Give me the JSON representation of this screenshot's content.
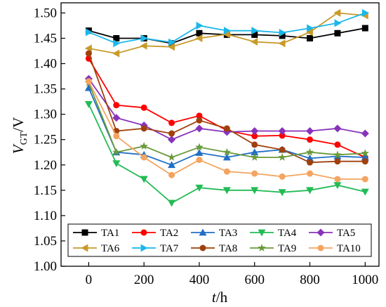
{
  "chart_data": {
    "type": "line",
    "xlabel": {
      "var": "t",
      "unit": "/h"
    },
    "ylabel": {
      "var": "V",
      "sub": "GT",
      "unit": "/V"
    },
    "xlim": [
      -100,
      1050
    ],
    "ylim": [
      1.0,
      1.52
    ],
    "xticks": [
      0,
      200,
      400,
      600,
      800,
      1000
    ],
    "yticks": [
      1.0,
      1.05,
      1.1,
      1.15,
      1.2,
      1.25,
      1.3,
      1.35,
      1.4,
      1.45,
      1.5
    ],
    "x": [
      0,
      100,
      200,
      300,
      400,
      500,
      600,
      700,
      800,
      900,
      1000
    ],
    "grid": false,
    "legend_position": "bottom",
    "series": [
      {
        "name": "TA1",
        "color": "#000000",
        "marker": "square",
        "values": [
          1.465,
          1.45,
          1.45,
          1.44,
          1.46,
          1.457,
          1.457,
          1.455,
          1.45,
          1.46,
          1.47
        ]
      },
      {
        "name": "TA2",
        "color": "#ff0000",
        "marker": "circle",
        "values": [
          1.41,
          1.318,
          1.313,
          1.283,
          1.297,
          1.268,
          1.257,
          1.258,
          1.25,
          1.24,
          1.215
        ]
      },
      {
        "name": "TA3",
        "color": "#1f6fc6",
        "marker": "triangle-up",
        "values": [
          1.352,
          1.225,
          1.22,
          1.2,
          1.224,
          1.215,
          1.225,
          1.23,
          1.213,
          1.217,
          1.215
        ]
      },
      {
        "name": "TA4",
        "color": "#22bb55",
        "marker": "triangle-down",
        "values": [
          1.32,
          1.203,
          1.172,
          1.125,
          1.155,
          1.15,
          1.15,
          1.146,
          1.15,
          1.16,
          1.147
        ]
      },
      {
        "name": "TA5",
        "color": "#8833bb",
        "marker": "diamond",
        "values": [
          1.37,
          1.293,
          1.278,
          1.25,
          1.272,
          1.265,
          1.267,
          1.267,
          1.267,
          1.272,
          1.262
        ]
      },
      {
        "name": "TA6",
        "color": "#c89a2a",
        "marker": "triangle-left",
        "values": [
          1.43,
          1.42,
          1.435,
          1.433,
          1.45,
          1.458,
          1.443,
          1.44,
          1.462,
          1.5,
          1.495
        ]
      },
      {
        "name": "TA7",
        "color": "#1ab7ea",
        "marker": "triangle-right",
        "values": [
          1.462,
          1.44,
          1.45,
          1.442,
          1.475,
          1.465,
          1.465,
          1.461,
          1.47,
          1.48,
          1.5
        ]
      },
      {
        "name": "TA8",
        "color": "#a0410d",
        "marker": "circle",
        "values": [
          1.42,
          1.267,
          1.272,
          1.262,
          1.288,
          1.272,
          1.24,
          1.23,
          1.205,
          1.207,
          1.207
        ]
      },
      {
        "name": "TA9",
        "color": "#6a9a3a",
        "marker": "star",
        "values": [
          1.362,
          1.225,
          1.237,
          1.215,
          1.235,
          1.225,
          1.215,
          1.215,
          1.225,
          1.22,
          1.223
        ]
      },
      {
        "name": "TA10",
        "color": "#f4a460",
        "marker": "circle",
        "values": [
          1.365,
          1.257,
          1.215,
          1.18,
          1.21,
          1.187,
          1.183,
          1.177,
          1.183,
          1.172,
          1.172
        ]
      }
    ]
  }
}
